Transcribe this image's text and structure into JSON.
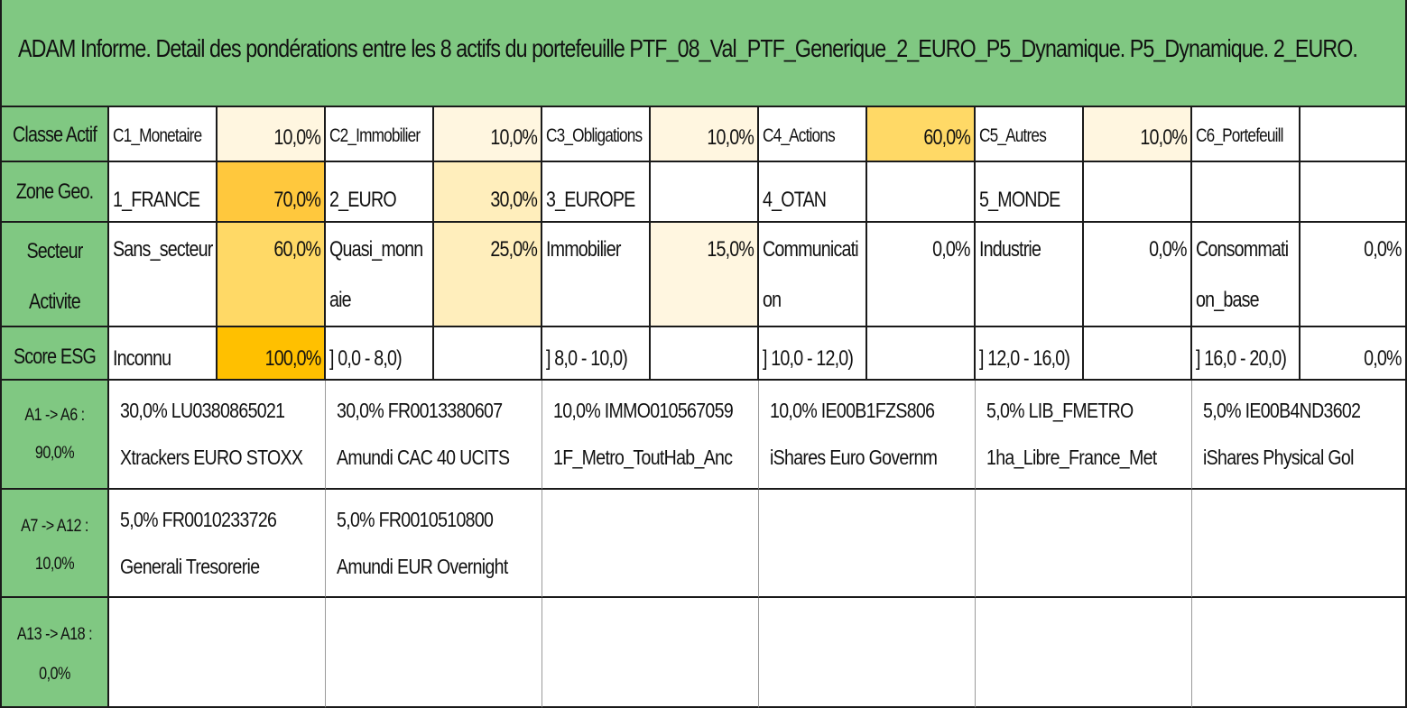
{
  "title": "ADAM Informe. Detail des pondérations entre les 8 actifs du portefeuille PTF_08_Val_PTF_Generique_2_EURO_P5_Dynamique. P5_Dynamique. 2_EURO.",
  "colors": {
    "header_green": "#80c882",
    "heat_100": "#ffc000",
    "heat_70": "#ffc83d",
    "heat_60": "#ffd966",
    "heat_30": "#ffeebc",
    "heat_10": "#fff6e0",
    "border": "#1a1a1a"
  },
  "classe": {
    "label": "Classe Actif",
    "items": [
      {
        "name": "C1_Monetaire",
        "value": "10,0%"
      },
      {
        "name": "C2_Immobilier",
        "value": "10,0%"
      },
      {
        "name": "C3_Obligations",
        "value": "10,0%"
      },
      {
        "name": "C4_Actions",
        "value": "60,0%"
      },
      {
        "name": "C5_Autres",
        "value": "10,0%"
      },
      {
        "name": "C6_Portefeuill",
        "value": ""
      }
    ]
  },
  "zone": {
    "label": "Zone Geo.",
    "items": [
      {
        "name": "1_FRANCE",
        "value": "70,0%"
      },
      {
        "name": "2_EURO",
        "value": "30,0%"
      },
      {
        "name": "3_EUROPE",
        "value": ""
      },
      {
        "name": "4_OTAN",
        "value": ""
      },
      {
        "name": "5_MONDE",
        "value": ""
      },
      {
        "name": "",
        "value": ""
      }
    ]
  },
  "secteur": {
    "label_line1": "Secteur",
    "label_line2": "Activite",
    "items": [
      {
        "name1": "Sans_secteur",
        "name2": "",
        "value": "60,0%"
      },
      {
        "name1": "Quasi_monn",
        "name2": "aie",
        "value": "25,0%"
      },
      {
        "name1": "Immobilier",
        "name2": "",
        "value": "15,0%"
      },
      {
        "name1": "Communicati",
        "name2": "on",
        "value": "0,0%"
      },
      {
        "name1": "Industrie",
        "name2": "",
        "value": "0,0%"
      },
      {
        "name1": "Consommati",
        "name2": "on_base",
        "value": "0,0%"
      }
    ]
  },
  "esg": {
    "label": "Score ESG",
    "items": [
      {
        "name": "Inconnu",
        "value": "100,0%"
      },
      {
        "name": "] 0,0 - 8,0)",
        "value": ""
      },
      {
        "name": "] 8,0 - 10,0)",
        "value": ""
      },
      {
        "name": "] 10,0 - 12,0)",
        "value": ""
      },
      {
        "name": "] 12,0 - 16,0)",
        "value": ""
      },
      {
        "name": "] 16,0 - 20,0)",
        "value": "0,0%"
      }
    ]
  },
  "groups": [
    {
      "label_line1": "A1 -> A6 :",
      "label_line2": "90,0%",
      "assets": [
        {
          "line1": "30,0% LU0380865021",
          "line2": "Xtrackers EURO STOXX"
        },
        {
          "line1": "30,0% FR0013380607",
          "line2": "Amundi CAC 40 UCITS"
        },
        {
          "line1": "10,0% IMMO010567059",
          "line2": "1F_Metro_ToutHab_Anc"
        },
        {
          "line1": "10,0% IE00B1FZS806",
          "line2": "iShares Euro Governm"
        },
        {
          "line1": "5,0% LIB_FMETRO",
          "line2": "1ha_Libre_France_Met"
        },
        {
          "line1": "5,0% IE00B4ND3602",
          "line2": "iShares Physical Gol"
        }
      ]
    },
    {
      "label_line1": "A7 -> A12 :",
      "label_line2": "10,0%",
      "assets": [
        {
          "line1": "5,0% FR0010233726",
          "line2": "Generali Tresorerie"
        },
        {
          "line1": "5,0% FR0010510800",
          "line2": "Amundi EUR Overnight"
        },
        {
          "line1": "",
          "line2": ""
        },
        {
          "line1": "",
          "line2": ""
        },
        {
          "line1": "",
          "line2": ""
        },
        {
          "line1": "",
          "line2": ""
        }
      ]
    },
    {
      "label_line1": "A13 -> A18 :",
      "label_line2": "0,0%",
      "assets": [
        {
          "line1": "",
          "line2": ""
        },
        {
          "line1": "",
          "line2": ""
        },
        {
          "line1": "",
          "line2": ""
        },
        {
          "line1": "",
          "line2": ""
        },
        {
          "line1": "",
          "line2": ""
        },
        {
          "line1": "",
          "line2": ""
        }
      ]
    }
  ]
}
